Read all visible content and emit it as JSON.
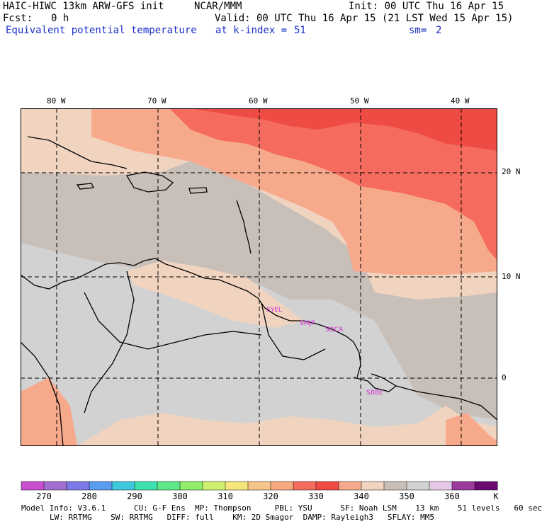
{
  "header": {
    "model_title": "HAIC-HIWC 13km ARW-GFS init",
    "org": "NCAR/MMM",
    "init_label": "Init: 00 UTC Thu 16 Apr 15",
    "fcst_label": "Fcst:",
    "fcst_value": "0 h",
    "valid_label": "Valid: 00 UTC Thu 16 Apr 15 (21 LST Wed 15 Apr 15)",
    "field_name": "Equivalent potential temperature",
    "level_label": "at k-index =",
    "level_value": "51",
    "smooth_label": "sm=",
    "smooth_value": "2"
  },
  "map": {
    "lon_labels": [
      "80 W",
      "70 W",
      "60 W",
      "50 W",
      "40 W"
    ],
    "lat_labels": [
      "20 N",
      "10 N",
      "0"
    ],
    "station_labels": [
      "SYEL",
      "SMJP",
      "SOCA",
      "SBBE"
    ],
    "colors": {
      "land_gray": "#d2d2d2",
      "sea_tan": "#c8bfb9",
      "light_tan": "#f0d4c0",
      "salmon": "#f7a98c",
      "coral": "#f56c5e",
      "red": "#ef4b45",
      "station": "#d22dd2"
    }
  },
  "colorbar": {
    "colors": [
      "#c94fcf",
      "#a36fcf",
      "#7d79e8",
      "#5a9cf0",
      "#3ec8dd",
      "#3fe0b0",
      "#5de88a",
      "#92ee6a",
      "#cff070",
      "#f6e57b",
      "#f6c58a",
      "#f7a97f",
      "#f56c5e",
      "#ef4b45",
      "#f7a98c",
      "#f0d4c0",
      "#c8bfb9",
      "#d2d2d2",
      "#e6c9e8",
      "#9c3a9e",
      "#6b0a72"
    ],
    "tick_labels": [
      "270",
      "280",
      "290",
      "300",
      "310",
      "320",
      "330",
      "340",
      "350",
      "360",
      "K"
    ]
  },
  "footer": {
    "line1": "Model Info: V3.6.1      CU: G-F Ens  MP: Thompson     PBL: YSU      SF: Noah LSM    13 km    51 levels   60 sec",
    "line2": "LW: RRTMG    SW: RRTMG   DIFF: full    KM: 2D Smagor  DAMP: Rayleigh3   SFLAY: MM5"
  }
}
